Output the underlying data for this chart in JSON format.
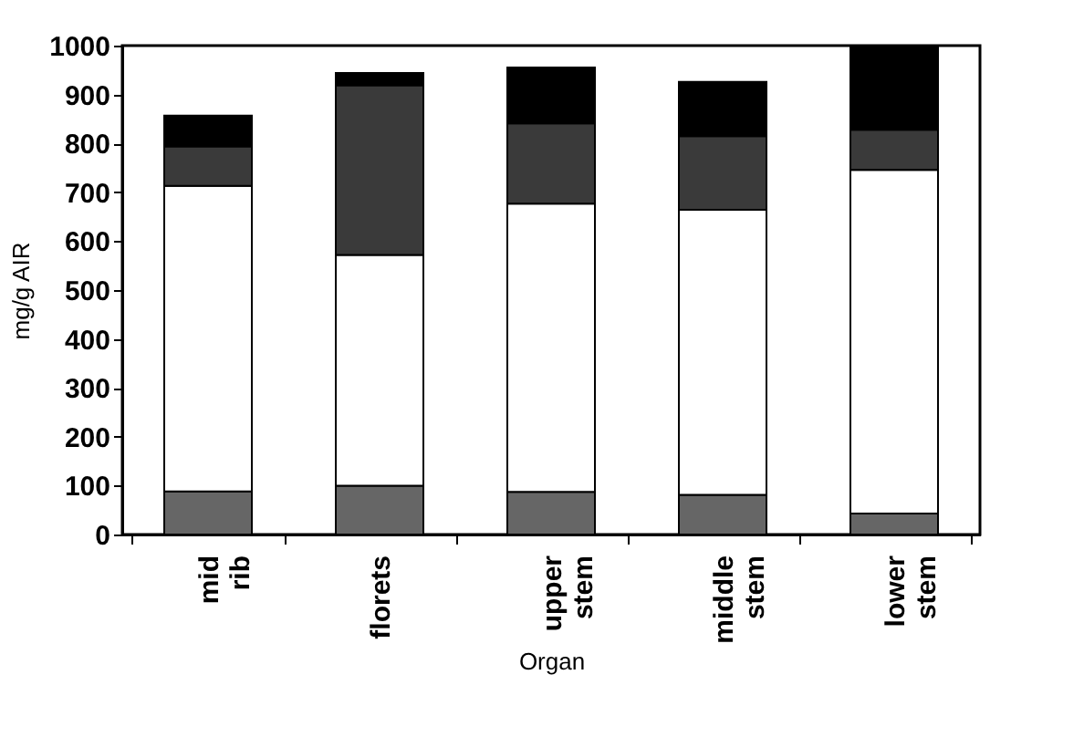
{
  "chart_data": {
    "type": "bar",
    "stacked": true,
    "xlabel": "Organ",
    "ylabel": "mg/g AIR",
    "categories": [
      "mid rib",
      "florets",
      "upper stem",
      "middle stem",
      "lower stem"
    ],
    "series": [
      {
        "color": "#666666",
        "values": [
          88,
          100,
          87,
          81,
          43
        ]
      },
      {
        "color": "#ffffff",
        "values": [
          625,
          472,
          590,
          583,
          703
        ]
      },
      {
        "color": "#3a3a3a",
        "values": [
          81,
          347,
          164,
          151,
          82
        ]
      },
      {
        "color": "#000000",
        "values": [
          63,
          25,
          114,
          111,
          172
        ]
      }
    ],
    "ylim": [
      0,
      1000
    ],
    "yticks": [
      0,
      100,
      200,
      300,
      400,
      500,
      600,
      700,
      800,
      900,
      1000
    ],
    "grid": false
  }
}
